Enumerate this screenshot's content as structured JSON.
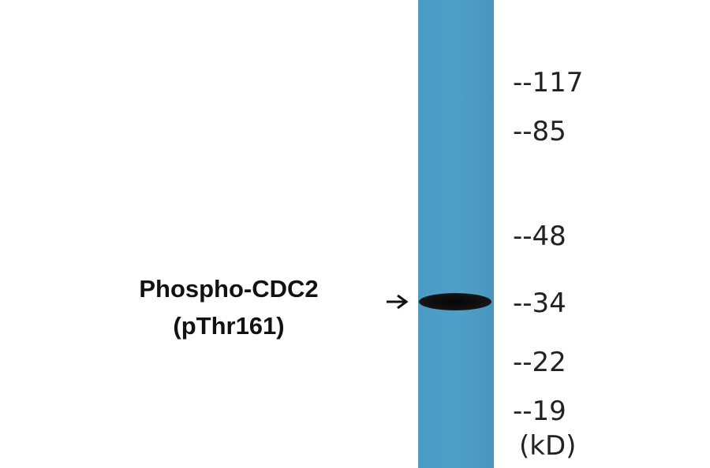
{
  "label": {
    "lines": [
      "Phospho-CDC2",
      "(pThr161)"
    ]
  },
  "markers": [
    "--117",
    "--85",
    "--48",
    "--34",
    "--22",
    "--19"
  ],
  "unit": "(kD)"
}
